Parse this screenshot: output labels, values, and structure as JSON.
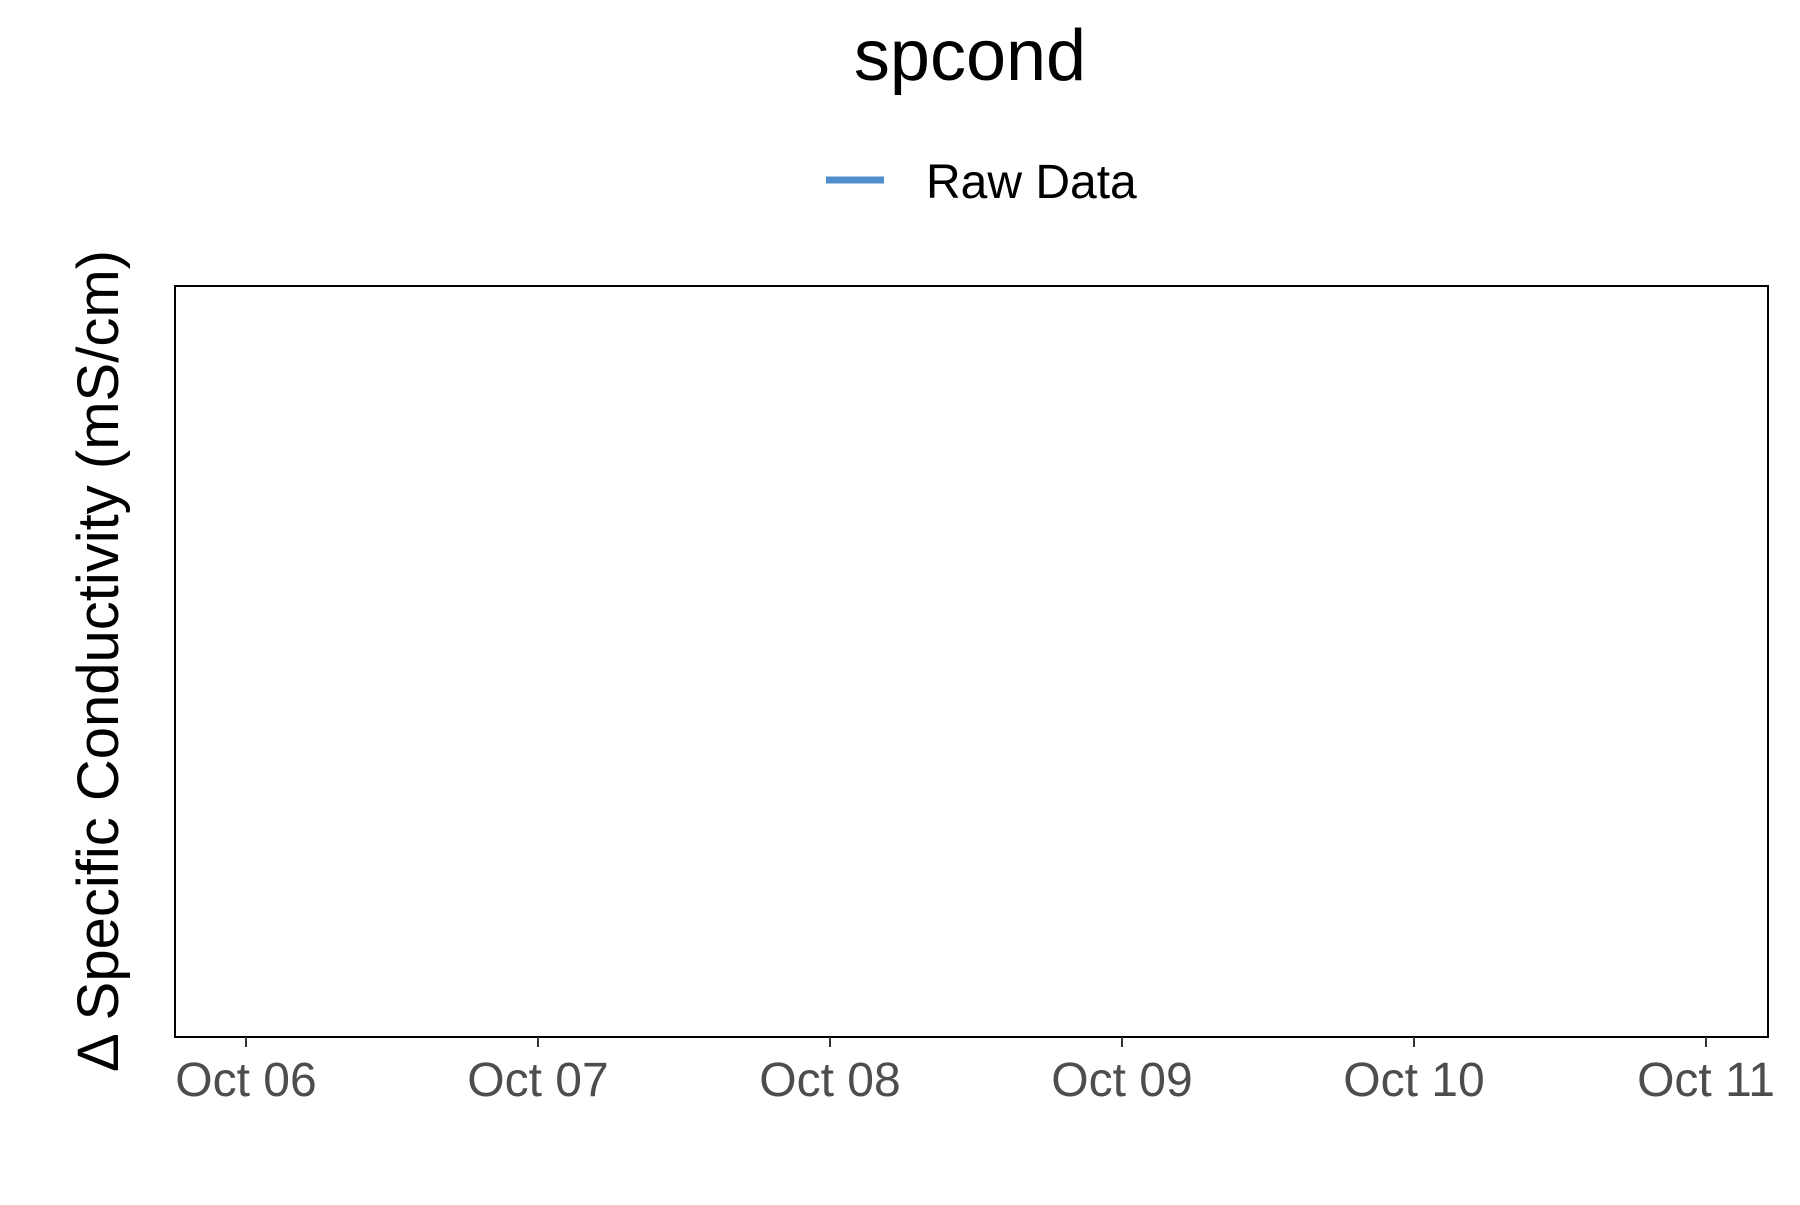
{
  "chart_data": {
    "type": "line",
    "title": "spcond",
    "xlabel": "",
    "ylabel": "Δ Specific Conductivity (mS/cm)",
    "x_tick_labels": [
      "Oct 06",
      "Oct 07",
      "Oct 08",
      "Oct 09",
      "Oct 10",
      "Oct 11"
    ],
    "series": [
      {
        "name": "Raw Data",
        "color": "#4f8fcb",
        "values": []
      }
    ],
    "legend_position": "top",
    "grid": false
  }
}
